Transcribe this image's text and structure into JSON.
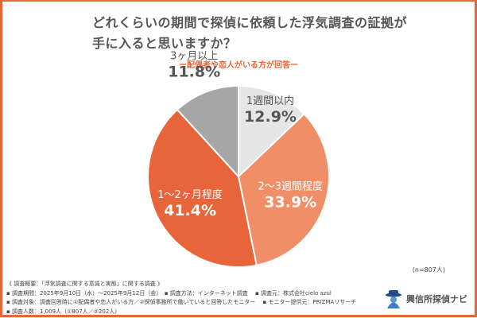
{
  "title_line1": "どれくらいの期間で探偵に依頼した浮気調査の証拠が",
  "title_line2": "手に入ると思いますか？",
  "subtitle": "ー配偶者や恋人がいる方が回答ー",
  "n_label": "(n=807人)",
  "chart_data": {
    "type": "pie",
    "categories": [
      "1週間以内",
      "2〜3週間程度",
      "1〜2ヶ月程度",
      "3ヶ月以上"
    ],
    "values": [
      12.9,
      33.9,
      41.4,
      11.8
    ],
    "value_labels": [
      "12.9%",
      "33.9%",
      "41.4%",
      "11.8%"
    ],
    "colors": [
      "#e6e6e6",
      "#f08f67",
      "#e8643a",
      "#a6a6a6"
    ],
    "label_colors": [
      "#555555",
      "#ffffff",
      "#ffffff",
      "#555555"
    ],
    "start": "top",
    "direction": "clockwise"
  },
  "meta": {
    "line1": "《 調査概要：「浮気調査に関する意識と実態」に関する調査 》",
    "line2": "▪ 調査期間：2025年9月10日（水）〜2025年9月12日（金）　▪ 調査方法：インターネット調査　 ▪ 調査元：株式会社cielo azul",
    "line3": "▪ 調査対象：調査回答時に①配偶者や恋人がいる方／②探偵事務所で働いていると回答したモニター　 ▪ モニター提供元：PRIZMAリサーチ",
    "line4": "▪ 調査人数：1,009人（①807人／②202人）"
  },
  "logo": {
    "text": "興信所探偵ナビ"
  }
}
